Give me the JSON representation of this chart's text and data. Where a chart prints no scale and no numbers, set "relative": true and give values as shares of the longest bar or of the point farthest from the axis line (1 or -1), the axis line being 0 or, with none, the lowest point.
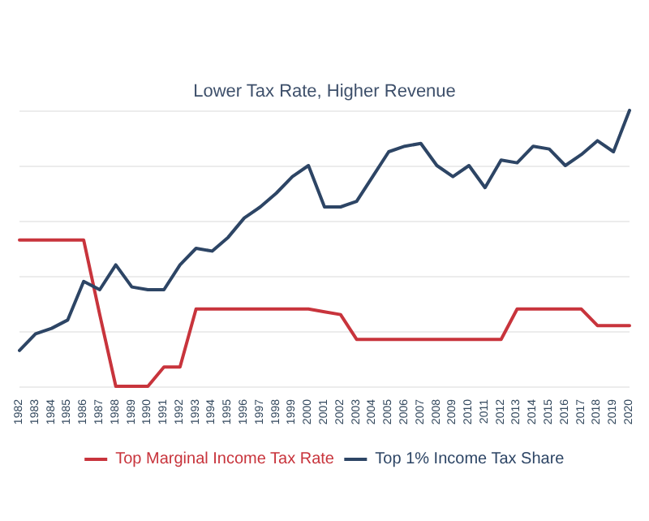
{
  "chart_data": {
    "type": "line",
    "title": "Lower Tax Rate, Higher Revenue",
    "relative": true,
    "grid": "y",
    "legend": "bottom",
    "marker": "none",
    "line_style": "solid",
    "categories": [
      "1982",
      "1983",
      "1984",
      "1985",
      "1986",
      "1987",
      "1988",
      "1989",
      "1990",
      "1991",
      "1992",
      "1993",
      "1994",
      "1995",
      "1996",
      "1997",
      "1998",
      "1999",
      "2000",
      "2001",
      "2002",
      "2003",
      "2004",
      "2005",
      "2006",
      "2007",
      "2008",
      "2009",
      "2010",
      "2011",
      "2012",
      "2013",
      "2014",
      "2015",
      "2016",
      "2017",
      "2018",
      "2019",
      "2020"
    ],
    "series": [
      {
        "name": "Top Marginal Income Tax Rate",
        "color": "#c8343c",
        "values": [
          0.53,
          0.53,
          0.53,
          0.53,
          0.53,
          0.26,
          0,
          0,
          0,
          0.07,
          0.07,
          0.28,
          0.28,
          0.28,
          0.28,
          0.28,
          0.28,
          0.28,
          0.28,
          0.27,
          0.26,
          0.17,
          0.17,
          0.17,
          0.17,
          0.17,
          0.17,
          0.17,
          0.17,
          0.17,
          0.17,
          0.28,
          0.28,
          0.28,
          0.28,
          0.28,
          0.22,
          0.22,
          0.22
        ]
      },
      {
        "name": "Top 1% Income Tax Share",
        "color": "#2d4565",
        "values": [
          0.13,
          0.19,
          0.21,
          0.24,
          0.38,
          0.35,
          0.44,
          0.36,
          0.35,
          0.35,
          0.44,
          0.5,
          0.49,
          0.54,
          0.61,
          0.65,
          0.7,
          0.76,
          0.8,
          0.65,
          0.65,
          0.67,
          0.76,
          0.85,
          0.87,
          0.88,
          0.8,
          0.76,
          0.8,
          0.72,
          0.82,
          0.81,
          0.87,
          0.86,
          0.8,
          0.84,
          0.89,
          0.85,
          1
        ]
      }
    ]
  }
}
